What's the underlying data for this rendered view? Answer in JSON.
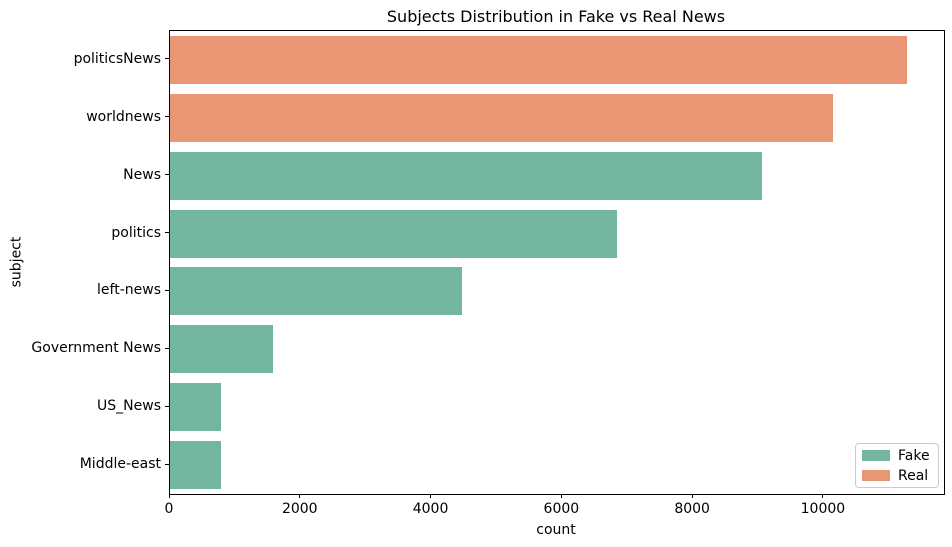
{
  "chart_data": {
    "type": "bar",
    "orientation": "horizontal",
    "title": "Subjects Distribution in Fake vs Real News",
    "xlabel": "count",
    "ylabel": "subject",
    "xlim": [
      0,
      11836
    ],
    "x_ticks": [
      0,
      2000,
      4000,
      6000,
      8000,
      10000
    ],
    "grid": false,
    "categories": [
      "politicsNews",
      "worldnews",
      "News",
      "politics",
      "left-news",
      "Government News",
      "US_News",
      "Middle-east"
    ],
    "values": [
      11272,
      10145,
      9050,
      6841,
      4459,
      1570,
      783,
      778
    ],
    "series_by_bar": [
      "Real",
      "Real",
      "Fake",
      "Fake",
      "Fake",
      "Fake",
      "Fake",
      "Fake"
    ],
    "legend": {
      "position": "lower-right",
      "entries": [
        {
          "label": "Fake",
          "color": "#72b6a1"
        },
        {
          "label": "Real",
          "color": "#e99675"
        }
      ]
    }
  }
}
